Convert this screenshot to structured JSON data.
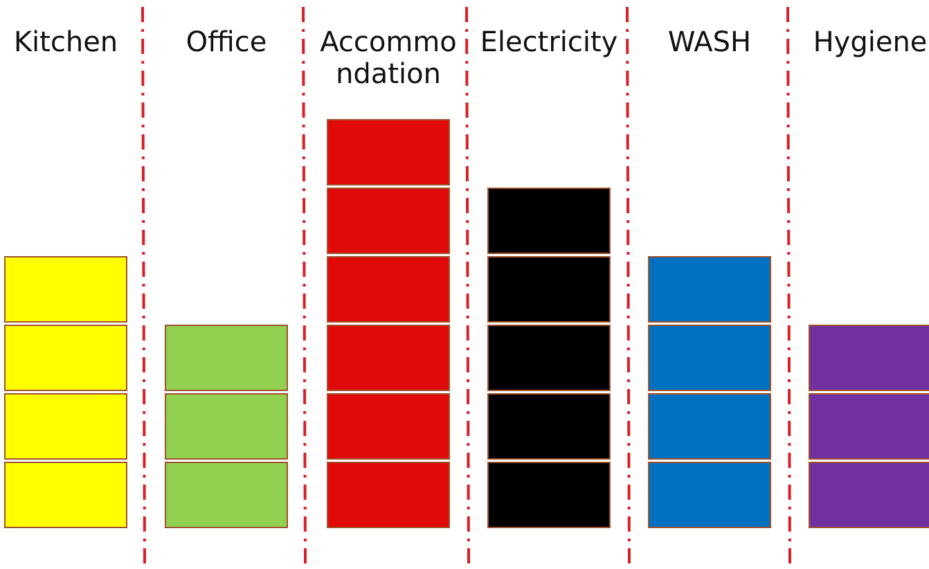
{
  "chart_data": {
    "type": "bar",
    "categories": [
      {
        "name": "Kitchen",
        "value": 4,
        "color": "#FFFF00"
      },
      {
        "name": "Office",
        "value": 3,
        "color": "#92D050"
      },
      {
        "name": "Accommo ndation",
        "value": 6,
        "color": "#E00A0A"
      },
      {
        "name": "Electricity",
        "value": 5,
        "color": "#000000"
      },
      {
        "name": "WASH",
        "value": 4,
        "color": "#0070C0"
      },
      {
        "name": "Hygiene",
        "value": 3,
        "color": "#7030A0"
      }
    ],
    "ylim": [
      0,
      6
    ],
    "grid": false,
    "block_border_color": "#A0522D",
    "divider_color": "#D81F26"
  }
}
